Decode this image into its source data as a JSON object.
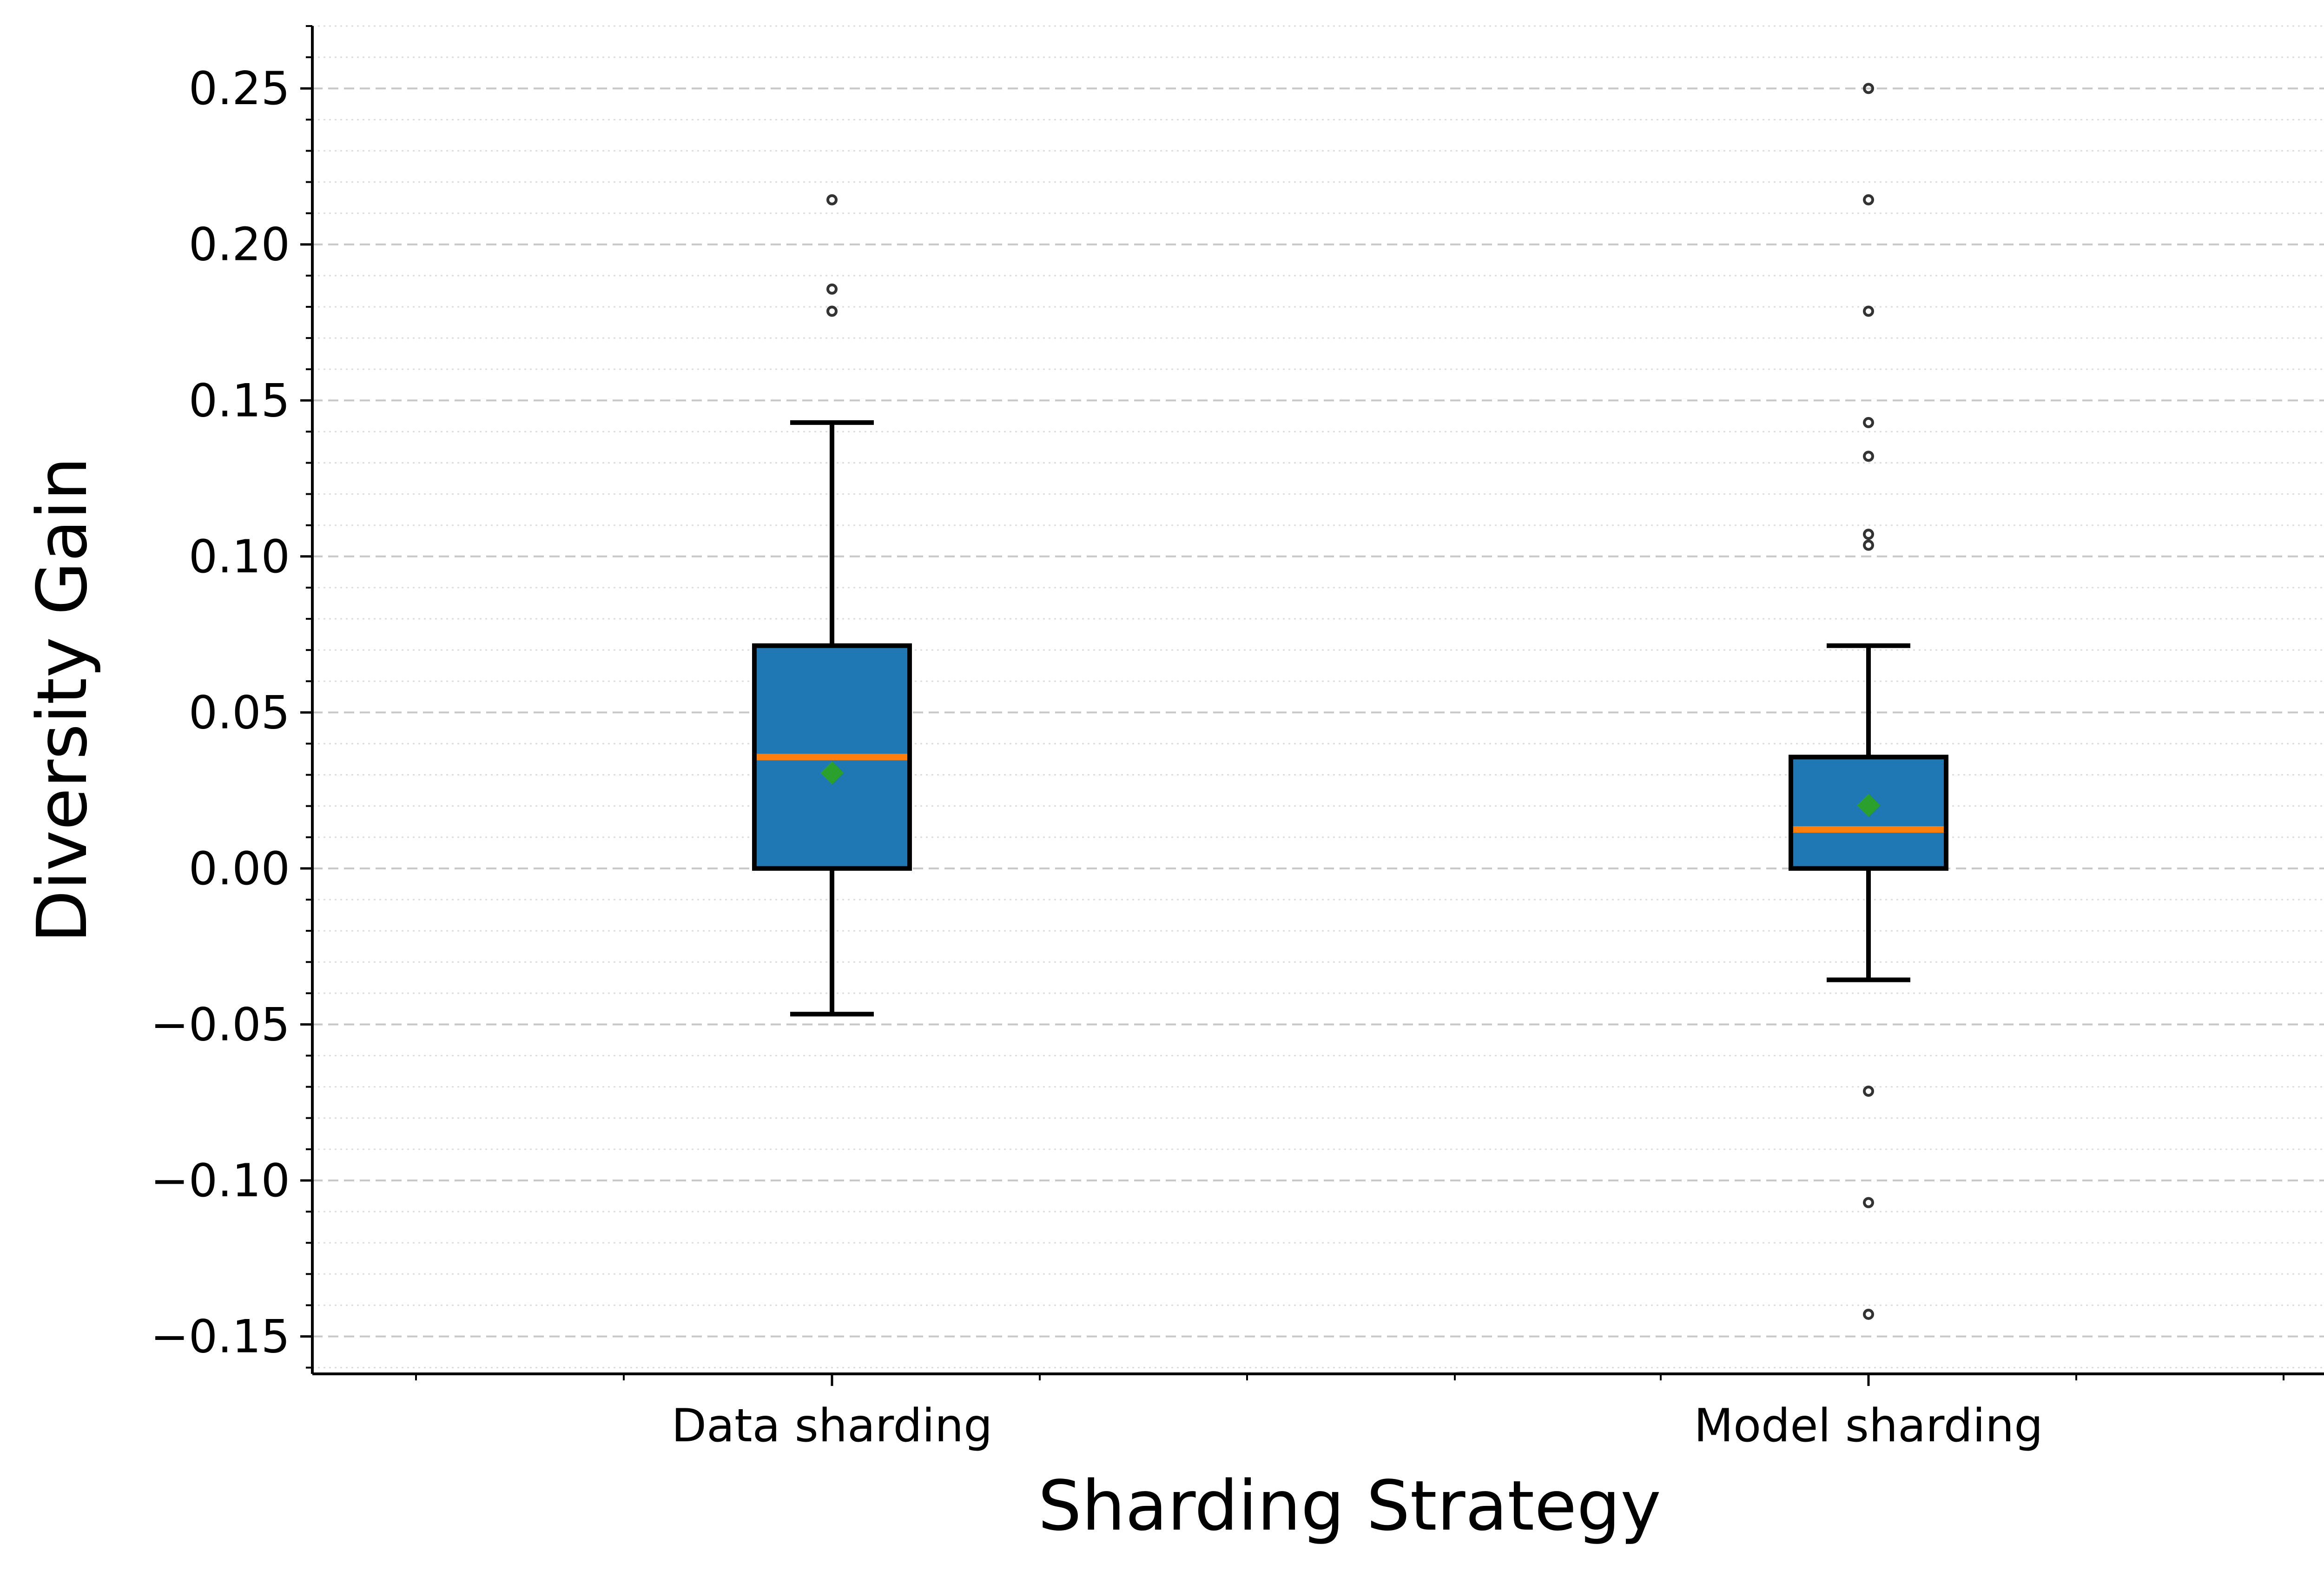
{
  "chart_data": {
    "type": "box",
    "title": "",
    "xlabel": "Sharding Strategy",
    "ylabel": "Diversity Gain",
    "ylim": [
      -0.162,
      0.27
    ],
    "yticks": [
      -0.15,
      -0.1,
      -0.05,
      0.0,
      0.05,
      0.1,
      0.15,
      0.2,
      0.25
    ],
    "ytick_labels": [
      "−0.15",
      "−0.10",
      "−0.05",
      "0.00",
      "0.05",
      "0.10",
      "0.15",
      "0.20",
      "0.25"
    ],
    "categories": [
      "Data sharding",
      "Model sharding"
    ],
    "boxes": [
      {
        "name": "Data sharding",
        "whisker_low": -0.0467,
        "q1": 0.0,
        "median": 0.0357,
        "q3": 0.0714,
        "whisker_high": 0.1429,
        "mean": 0.0306,
        "outliers": [
          0.2143,
          0.1857,
          0.1786
        ]
      },
      {
        "name": "Model sharding",
        "whisker_low": -0.0357,
        "q1": 0.0,
        "median": 0.0125,
        "q3": 0.0357,
        "whisker_high": 0.0714,
        "mean": 0.0202,
        "outliers": [
          0.25,
          0.2143,
          0.1786,
          0.1429,
          0.1321,
          0.1071,
          0.1036,
          -0.0714,
          -0.1071,
          -0.1429
        ]
      }
    ],
    "colors": {
      "box_fill": "#1f77b4",
      "median": "#ff7f0e",
      "mean_marker": "#2ca02c",
      "grid_major": "#c8c8c8",
      "grid_minor": "#dddddd"
    },
    "grid": true
  }
}
